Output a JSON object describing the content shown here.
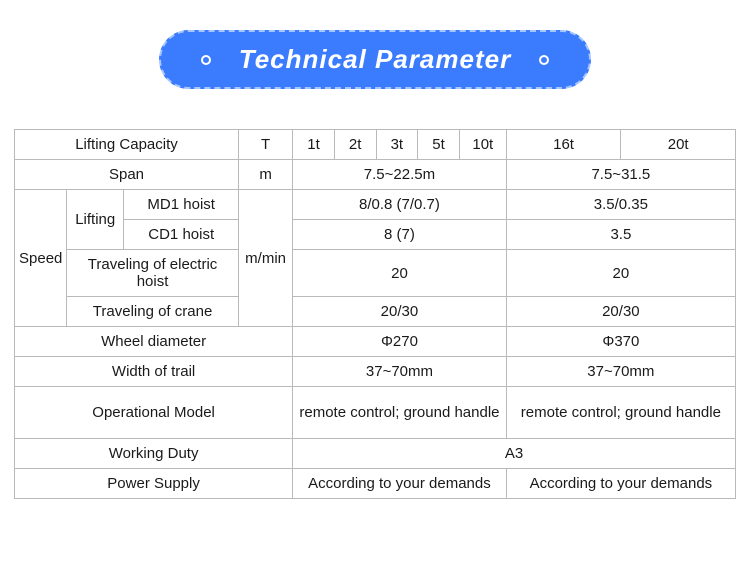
{
  "banner": {
    "title": "Technical Parameter"
  },
  "colors": {
    "banner_bg": "#3b7cff",
    "banner_border": "#a7c6ff",
    "banner_text": "#ffffff",
    "table_border": "#b9b9b9",
    "text": "#1a1a1a",
    "bg": "#ffffff"
  },
  "table": {
    "lifting_capacity": {
      "label": "Lifting Capacity",
      "unit": "T",
      "v1": "1t",
      "v2": "2t",
      "v3": "3t",
      "v4": "5t",
      "v5": "10t",
      "v6": "16t",
      "v7": "20t"
    },
    "span": {
      "label": "Span",
      "unit": "m",
      "valA": "7.5~22.5m",
      "valB": "7.5~31.5"
    },
    "speed": {
      "label": "Speed",
      "lifting_label": "Lifting",
      "md1_label": "MD1 hoist",
      "cd1_label": "CD1 hoist",
      "unit": "m/min",
      "md1_a": "8/0.8 (7/0.7)",
      "md1_b": "3.5/0.35",
      "cd1_a": "8 (7)",
      "cd1_b": "3.5",
      "trav_hoist_label": "Traveling of electric hoist",
      "trav_hoist_a": "20",
      "trav_hoist_b": "20",
      "trav_crane_label": "Traveling of crane",
      "trav_crane_a": "20/30",
      "trav_crane_b": "20/30"
    },
    "wheel": {
      "label": "Wheel diameter",
      "valA": "Φ270",
      "valB": "Φ370"
    },
    "trail": {
      "label": "Width of trail",
      "valA": "37~70mm",
      "valB": "37~70mm"
    },
    "op_model": {
      "label": "Operational Model",
      "valA": "remote control; ground handle",
      "valB": "remote control; ground handle"
    },
    "duty": {
      "label": "Working Duty",
      "val": "A3"
    },
    "power": {
      "label": "Power Supply",
      "valA": "According to your demands",
      "valB": "According to your demands"
    }
  }
}
